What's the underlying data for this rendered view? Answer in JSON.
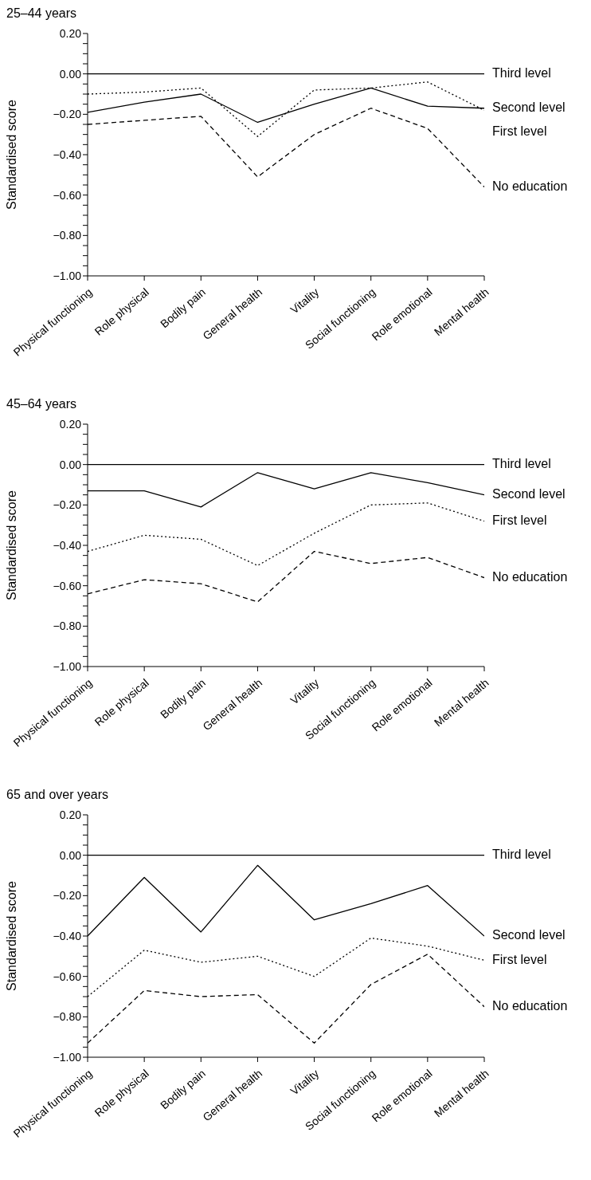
{
  "chart_data": [
    {
      "type": "line",
      "title": "25–44 years",
      "ylabel": "Standardised score",
      "categories": [
        "Physical functioning",
        "Role physical",
        "Bodily pain",
        "General health",
        "Vitality",
        "Social functioning",
        "Role emotional",
        "Mental health"
      ],
      "ylim": [
        -1.0,
        0.2
      ],
      "yticks": [
        {
          "value": 0.2,
          "label": "0.20"
        },
        {
          "value": 0.15,
          "label": null
        },
        {
          "value": 0.1,
          "label": null
        },
        {
          "value": 0.05,
          "label": null
        },
        {
          "value": 0,
          "label": "0.00"
        },
        {
          "value": -0.05,
          "label": null
        },
        {
          "value": -0.1,
          "label": null
        },
        {
          "value": -0.15,
          "label": null
        },
        {
          "value": -0.2,
          "label": "−0.20"
        },
        {
          "value": -0.25,
          "label": null
        },
        {
          "value": -0.3,
          "label": null
        },
        {
          "value": -0.35,
          "label": null
        },
        {
          "value": -0.4,
          "label": "−0.40"
        },
        {
          "value": -0.45,
          "label": null
        },
        {
          "value": -0.5,
          "label": null
        },
        {
          "value": -0.55,
          "label": null
        },
        {
          "value": -0.6,
          "label": "−0.60"
        },
        {
          "value": -0.65,
          "label": null
        },
        {
          "value": -0.7,
          "label": null
        },
        {
          "value": -0.75,
          "label": null
        },
        {
          "value": -0.8,
          "label": "−0.80"
        },
        {
          "value": -0.85,
          "label": null
        },
        {
          "value": -0.9,
          "label": null
        },
        {
          "value": -0.95,
          "label": null
        },
        {
          "value": -1.0,
          "label": "−1.00"
        }
      ],
      "grid": false,
      "legend": false,
      "marker": "none",
      "series": [
        {
          "name": "Third level",
          "color": "#000000",
          "line_style": "solid",
          "values": [
            0,
            0,
            0,
            0,
            0,
            0,
            0,
            0
          ]
        },
        {
          "name": "First level",
          "color": "#000000",
          "line_style": "dotted",
          "values": [
            -0.1,
            -0.09,
            -0.07,
            -0.31,
            -0.08,
            -0.07,
            -0.04,
            -0.18
          ]
        },
        {
          "name": "Second level",
          "color": "#000000",
          "line_style": "solid",
          "values": [
            -0.19,
            -0.14,
            -0.1,
            -0.24,
            -0.15,
            -0.07,
            -0.16,
            -0.17
          ]
        },
        {
          "name": "No education",
          "color": "#000000",
          "line_style": "dashed",
          "values": [
            -0.25,
            -0.23,
            -0.21,
            -0.51,
            -0.3,
            -0.17,
            -0.27,
            -0.56
          ]
        }
      ]
    },
    {
      "type": "line",
      "title": "45–64 years",
      "ylabel": "Standardised score",
      "categories": [
        "Physical functioning",
        "Role physical",
        "Bodily pain",
        "General health",
        "Vitality",
        "Social functioning",
        "Role emotional",
        "Mental health"
      ],
      "ylim": [
        -1.0,
        0.2
      ],
      "yticks": [
        {
          "value": 0.2,
          "label": "0.20"
        },
        {
          "value": 0.15,
          "label": null
        },
        {
          "value": 0.1,
          "label": null
        },
        {
          "value": 0.05,
          "label": null
        },
        {
          "value": 0,
          "label": "0.00"
        },
        {
          "value": -0.05,
          "label": null
        },
        {
          "value": -0.1,
          "label": null
        },
        {
          "value": -0.15,
          "label": null
        },
        {
          "value": -0.2,
          "label": "−0.20"
        },
        {
          "value": -0.25,
          "label": null
        },
        {
          "value": -0.3,
          "label": null
        },
        {
          "value": -0.35,
          "label": null
        },
        {
          "value": -0.4,
          "label": "−0.40"
        },
        {
          "value": -0.45,
          "label": null
        },
        {
          "value": -0.5,
          "label": null
        },
        {
          "value": -0.55,
          "label": null
        },
        {
          "value": -0.6,
          "label": "−0.60"
        },
        {
          "value": -0.65,
          "label": null
        },
        {
          "value": -0.7,
          "label": null
        },
        {
          "value": -0.75,
          "label": null
        },
        {
          "value": -0.8,
          "label": "−0.80"
        },
        {
          "value": -0.85,
          "label": null
        },
        {
          "value": -0.9,
          "label": null
        },
        {
          "value": -0.95,
          "label": null
        },
        {
          "value": -1.0,
          "label": "−1.00"
        }
      ],
      "grid": false,
      "legend": false,
      "marker": "none",
      "series": [
        {
          "name": "Third level",
          "color": "#000000",
          "line_style": "solid",
          "values": [
            0,
            0,
            0,
            0,
            0,
            0,
            0,
            0
          ]
        },
        {
          "name": "Second level",
          "color": "#000000",
          "line_style": "solid",
          "values": [
            -0.13,
            -0.13,
            -0.21,
            -0.04,
            -0.12,
            -0.04,
            -0.09,
            -0.15
          ]
        },
        {
          "name": "First level",
          "color": "#000000",
          "line_style": "dotted",
          "values": [
            -0.43,
            -0.35,
            -0.37,
            -0.5,
            -0.34,
            -0.2,
            -0.19,
            -0.28
          ]
        },
        {
          "name": "No education",
          "color": "#000000",
          "line_style": "dashed",
          "values": [
            -0.64,
            -0.57,
            -0.59,
            -0.68,
            -0.43,
            -0.49,
            -0.46,
            -0.56
          ]
        }
      ]
    },
    {
      "type": "line",
      "title": "65 and over years",
      "ylabel": "Standardised score",
      "categories": [
        "Physical functioning",
        "Role physical",
        "Bodily pain",
        "General health",
        "Vitality",
        "Social functioning",
        "Role emotional",
        "Mental health"
      ],
      "ylim": [
        -1.0,
        0.2
      ],
      "yticks": [
        {
          "value": 0.2,
          "label": "0.20"
        },
        {
          "value": 0.15,
          "label": null
        },
        {
          "value": 0.1,
          "label": null
        },
        {
          "value": 0.05,
          "label": null
        },
        {
          "value": 0,
          "label": "0.00"
        },
        {
          "value": -0.05,
          "label": null
        },
        {
          "value": -0.1,
          "label": null
        },
        {
          "value": -0.15,
          "label": null
        },
        {
          "value": -0.2,
          "label": "−0.20"
        },
        {
          "value": -0.25,
          "label": null
        },
        {
          "value": -0.3,
          "label": null
        },
        {
          "value": -0.35,
          "label": null
        },
        {
          "value": -0.4,
          "label": "−0.40"
        },
        {
          "value": -0.45,
          "label": null
        },
        {
          "value": -0.5,
          "label": null
        },
        {
          "value": -0.55,
          "label": null
        },
        {
          "value": -0.6,
          "label": "−0.60"
        },
        {
          "value": -0.65,
          "label": null
        },
        {
          "value": -0.7,
          "label": null
        },
        {
          "value": -0.75,
          "label": null
        },
        {
          "value": -0.8,
          "label": "−0.80"
        },
        {
          "value": -0.85,
          "label": null
        },
        {
          "value": -0.9,
          "label": null
        },
        {
          "value": -0.95,
          "label": null
        },
        {
          "value": -1.0,
          "label": "−1.00"
        }
      ],
      "grid": false,
      "legend": false,
      "marker": "none",
      "series": [
        {
          "name": "Third level",
          "color": "#000000",
          "line_style": "solid",
          "values": [
            0,
            0,
            0,
            0,
            0,
            0,
            0,
            0
          ]
        },
        {
          "name": "Second level",
          "color": "#000000",
          "line_style": "solid",
          "values": [
            -0.4,
            -0.11,
            -0.38,
            -0.05,
            -0.32,
            -0.24,
            -0.15,
            -0.4
          ]
        },
        {
          "name": "First level",
          "color": "#000000",
          "line_style": "dotted",
          "values": [
            -0.7,
            -0.47,
            -0.53,
            -0.5,
            -0.6,
            -0.41,
            -0.45,
            -0.52
          ]
        },
        {
          "name": "No education",
          "color": "#000000",
          "line_style": "dashed",
          "values": [
            -0.93,
            -0.67,
            -0.7,
            -0.69,
            -0.93,
            -0.64,
            -0.49,
            -0.75
          ]
        }
      ]
    }
  ]
}
